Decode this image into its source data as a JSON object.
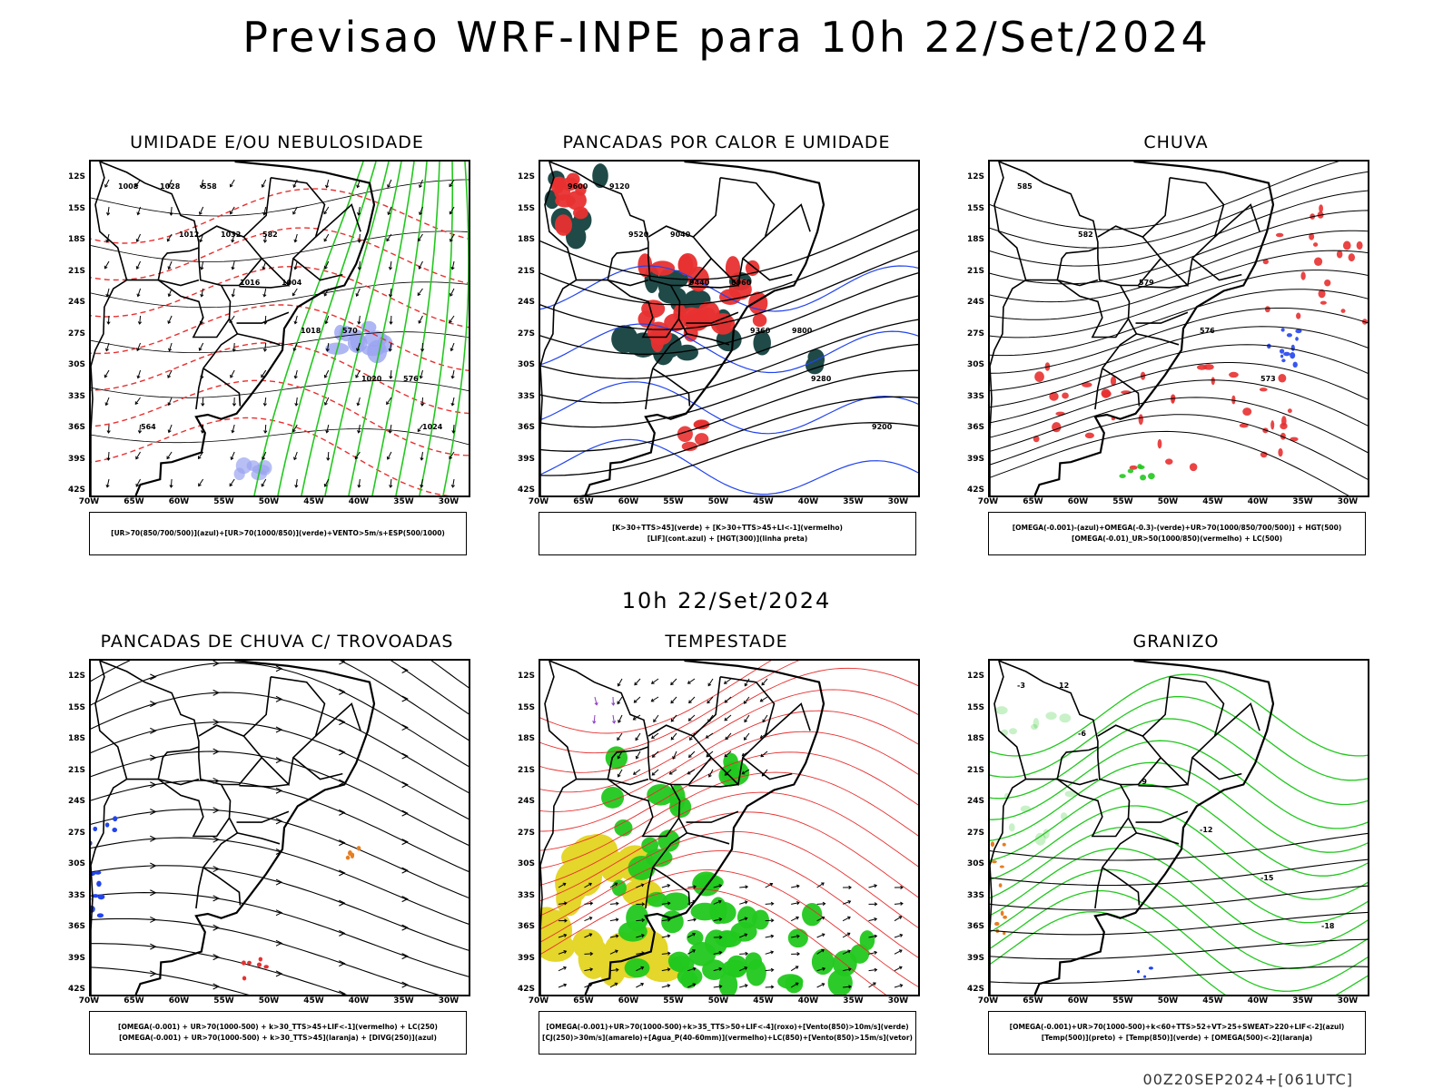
{
  "header": {
    "title": "Previsao WRF-INPE  para 10h 22/Set/2024",
    "mid_time": "10h 22/Set/2024",
    "footer": "00Z20SEP2024+[061UTC]"
  },
  "axes": {
    "lat_labels": [
      "12S",
      "15S",
      "18S",
      "21S",
      "24S",
      "27S",
      "30S",
      "33S",
      "36S",
      "39S",
      "42S"
    ],
    "lon_labels": [
      "70W",
      "65W",
      "60W",
      "55W",
      "50W",
      "45W",
      "40W",
      "35W",
      "30W"
    ]
  },
  "colors": {
    "red": "#e83030",
    "green": "#22c81e",
    "blue": "#2244ee",
    "lavender": "#9aa4f0",
    "darkgreen": "#1f4a48",
    "yellow": "#e4d62a",
    "orange": "#e67e22",
    "purple": "#8a3ec0",
    "black": "#000000"
  },
  "panels": [
    {
      "title": "UMIDADE E/OU NEBULOSIDADE",
      "legend": [
        "[UR>70(850/700/500)](azul)+[UR>70(1000/850)](verde)+VENTO>5m/s+ESP(500/1000)"
      ],
      "labels": [
        "1008",
        "1012",
        "1016",
        "1018",
        "1020",
        "1024",
        "1028",
        "1032",
        "1004",
        "570",
        "576",
        "564",
        "558",
        "582"
      ]
    },
    {
      "title": "PANCADAS POR CALOR E UMIDADE",
      "legend": [
        "[K>30+TTS>45](verde) + [K>30+TTS>45+LI<-1](vermelho)",
        "[LIF](cont.azul) + [HGT(300)](linha preta)"
      ],
      "labels": [
        "9600",
        "9520",
        "9440",
        "9360",
        "9280",
        "9200",
        "9120",
        "9040",
        "8960",
        "9800"
      ]
    },
    {
      "title": "CHUVA",
      "legend": [
        "[OMEGA(-0.001)-(azul)+OMEGA(-0.3)-(verde)+UR>70(1000/850/700/500)] + HGT(500)",
        "[OMEGA(-0.01)_UR>50(1000/850)(vermelho) + LC(500)"
      ],
      "labels": [
        "585",
        "582",
        "579",
        "576",
        "573"
      ]
    },
    {
      "title": "PANCADAS DE CHUVA C/ TROVOADAS",
      "legend": [
        "[OMEGA(-0.001) + UR>70(1000-500) + k>30_TTS>45+LIF<-1](vermelho) + LC(250)",
        "[OMEGA(-0.001) + UR>70(1000-500) + k>30_TTS>45](laranja) + [DIVG(250)](azul)"
      ],
      "labels": []
    },
    {
      "title": "TEMPESTADE",
      "legend": [
        "[OMEGA(-0.001)+UR>70(1000-500)+k>35_TTS>50+LIF<-4](roxo)+[Vento(850)>10m/s](verde)",
        "[CJ(250)>30m/s](amarelo)+[Agua_P(40-60mm)](vermelho)+LC(850)+[Vento(850)>15m/s](vetor)"
      ],
      "labels": []
    },
    {
      "title": "GRANIZO",
      "legend": [
        "[OMEGA(-0.001)+UR>70(1000-500)+k<60+TTS>52+VT>25+SWEAT>220+LIF<-2](azul)",
        "[Temp(500)](preto) + [Temp(850)](verde) + [OMEGA(500)<-2](laranja)"
      ],
      "labels": [
        "-3",
        "-6",
        "-9",
        "-12",
        "-15",
        "-18",
        "12"
      ]
    }
  ]
}
